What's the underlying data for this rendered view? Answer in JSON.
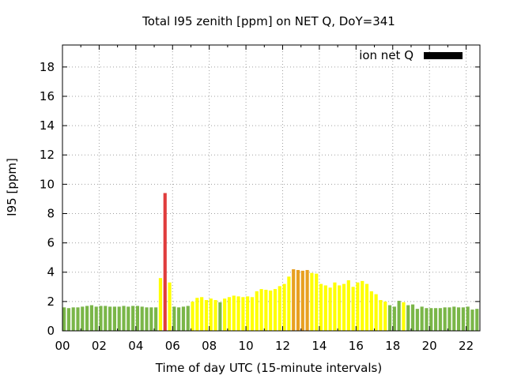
{
  "chart_data": {
    "type": "bar",
    "title": "Total I95 zenith [ppm] on NET Q, DoY=341",
    "xlabel": "Time of day UTC (15-minute intervals)",
    "ylabel": "I95 [ppm]",
    "xlim": [
      0,
      22.75
    ],
    "ylim": [
      0,
      19.5
    ],
    "x_ticks": [
      "00",
      "02",
      "04",
      "06",
      "08",
      "10",
      "12",
      "14",
      "16",
      "18",
      "20",
      "22"
    ],
    "y_ticks": [
      "0",
      "2",
      "4",
      "6",
      "8",
      "10",
      "12",
      "14",
      "16",
      "18"
    ],
    "grid": true,
    "legend": {
      "label": "ion net Q",
      "position": "top-right",
      "color": "#000000"
    },
    "colors": {
      "green": "#7ab648",
      "yellow": "#ffff00",
      "orange": "#e8a020",
      "red": "#e03c3c"
    },
    "bar_width_hours": 0.18,
    "bars": [
      {
        "x": 0.0,
        "value": 1.6,
        "color": "green"
      },
      {
        "x": 0.25,
        "value": 1.55,
        "color": "green"
      },
      {
        "x": 0.5,
        "value": 1.6,
        "color": "green"
      },
      {
        "x": 0.75,
        "value": 1.6,
        "color": "green"
      },
      {
        "x": 1.0,
        "value": 1.65,
        "color": "green"
      },
      {
        "x": 1.25,
        "value": 1.7,
        "color": "green"
      },
      {
        "x": 1.5,
        "value": 1.75,
        "color": "green"
      },
      {
        "x": 1.75,
        "value": 1.65,
        "color": "green"
      },
      {
        "x": 2.0,
        "value": 1.7,
        "color": "green"
      },
      {
        "x": 2.25,
        "value": 1.7,
        "color": "green"
      },
      {
        "x": 2.5,
        "value": 1.65,
        "color": "green"
      },
      {
        "x": 2.75,
        "value": 1.65,
        "color": "green"
      },
      {
        "x": 3.0,
        "value": 1.65,
        "color": "green"
      },
      {
        "x": 3.25,
        "value": 1.7,
        "color": "green"
      },
      {
        "x": 3.5,
        "value": 1.65,
        "color": "green"
      },
      {
        "x": 3.75,
        "value": 1.7,
        "color": "green"
      },
      {
        "x": 4.0,
        "value": 1.7,
        "color": "green"
      },
      {
        "x": 4.25,
        "value": 1.65,
        "color": "green"
      },
      {
        "x": 4.5,
        "value": 1.6,
        "color": "green"
      },
      {
        "x": 4.75,
        "value": 1.6,
        "color": "green"
      },
      {
        "x": 5.0,
        "value": 1.6,
        "color": "green"
      },
      {
        "x": 5.25,
        "value": 3.6,
        "color": "yellow"
      },
      {
        "x": 5.5,
        "value": 9.4,
        "color": "red"
      },
      {
        "x": 5.75,
        "value": 3.3,
        "color": "yellow"
      },
      {
        "x": 6.0,
        "value": 1.65,
        "color": "green"
      },
      {
        "x": 6.25,
        "value": 1.6,
        "color": "green"
      },
      {
        "x": 6.5,
        "value": 1.65,
        "color": "green"
      },
      {
        "x": 6.75,
        "value": 1.7,
        "color": "green"
      },
      {
        "x": 7.0,
        "value": 2.0,
        "color": "yellow"
      },
      {
        "x": 7.25,
        "value": 2.25,
        "color": "yellow"
      },
      {
        "x": 7.5,
        "value": 2.3,
        "color": "yellow"
      },
      {
        "x": 7.75,
        "value": 2.1,
        "color": "yellow"
      },
      {
        "x": 8.0,
        "value": 2.2,
        "color": "yellow"
      },
      {
        "x": 8.25,
        "value": 2.1,
        "color": "yellow"
      },
      {
        "x": 8.5,
        "value": 1.95,
        "color": "green"
      },
      {
        "x": 8.75,
        "value": 2.2,
        "color": "yellow"
      },
      {
        "x": 9.0,
        "value": 2.3,
        "color": "yellow"
      },
      {
        "x": 9.25,
        "value": 2.4,
        "color": "yellow"
      },
      {
        "x": 9.5,
        "value": 2.35,
        "color": "yellow"
      },
      {
        "x": 9.75,
        "value": 2.3,
        "color": "yellow"
      },
      {
        "x": 10.0,
        "value": 2.35,
        "color": "yellow"
      },
      {
        "x": 10.25,
        "value": 2.3,
        "color": "yellow"
      },
      {
        "x": 10.5,
        "value": 2.7,
        "color": "yellow"
      },
      {
        "x": 10.75,
        "value": 2.85,
        "color": "yellow"
      },
      {
        "x": 11.0,
        "value": 2.8,
        "color": "yellow"
      },
      {
        "x": 11.25,
        "value": 2.75,
        "color": "yellow"
      },
      {
        "x": 11.5,
        "value": 2.85,
        "color": "yellow"
      },
      {
        "x": 11.75,
        "value": 3.05,
        "color": "yellow"
      },
      {
        "x": 12.0,
        "value": 3.2,
        "color": "yellow"
      },
      {
        "x": 12.25,
        "value": 3.7,
        "color": "yellow"
      },
      {
        "x": 12.5,
        "value": 4.2,
        "color": "orange"
      },
      {
        "x": 12.75,
        "value": 4.15,
        "color": "orange"
      },
      {
        "x": 13.0,
        "value": 4.1,
        "color": "orange"
      },
      {
        "x": 13.25,
        "value": 4.15,
        "color": "orange"
      },
      {
        "x": 13.5,
        "value": 3.95,
        "color": "yellow"
      },
      {
        "x": 13.75,
        "value": 3.9,
        "color": "yellow"
      },
      {
        "x": 14.0,
        "value": 3.2,
        "color": "yellow"
      },
      {
        "x": 14.25,
        "value": 3.1,
        "color": "yellow"
      },
      {
        "x": 14.5,
        "value": 2.95,
        "color": "yellow"
      },
      {
        "x": 14.75,
        "value": 3.3,
        "color": "yellow"
      },
      {
        "x": 15.0,
        "value": 3.1,
        "color": "yellow"
      },
      {
        "x": 15.25,
        "value": 3.2,
        "color": "yellow"
      },
      {
        "x": 15.5,
        "value": 3.45,
        "color": "yellow"
      },
      {
        "x": 15.75,
        "value": 3.0,
        "color": "yellow"
      },
      {
        "x": 16.0,
        "value": 3.3,
        "color": "yellow"
      },
      {
        "x": 16.25,
        "value": 3.4,
        "color": "yellow"
      },
      {
        "x": 16.5,
        "value": 3.2,
        "color": "yellow"
      },
      {
        "x": 16.75,
        "value": 2.7,
        "color": "yellow"
      },
      {
        "x": 17.0,
        "value": 2.5,
        "color": "yellow"
      },
      {
        "x": 17.25,
        "value": 2.1,
        "color": "yellow"
      },
      {
        "x": 17.5,
        "value": 2.0,
        "color": "yellow"
      },
      {
        "x": 17.75,
        "value": 1.75,
        "color": "green"
      },
      {
        "x": 18.0,
        "value": 1.65,
        "color": "green"
      },
      {
        "x": 18.25,
        "value": 2.05,
        "color": "green"
      },
      {
        "x": 18.5,
        "value": 1.95,
        "color": "yellow"
      },
      {
        "x": 18.75,
        "value": 1.75,
        "color": "green"
      },
      {
        "x": 19.0,
        "value": 1.8,
        "color": "green"
      },
      {
        "x": 19.25,
        "value": 1.5,
        "color": "green"
      },
      {
        "x": 19.5,
        "value": 1.65,
        "color": "green"
      },
      {
        "x": 19.75,
        "value": 1.55,
        "color": "green"
      },
      {
        "x": 20.0,
        "value": 1.55,
        "color": "green"
      },
      {
        "x": 20.25,
        "value": 1.55,
        "color": "green"
      },
      {
        "x": 20.5,
        "value": 1.55,
        "color": "green"
      },
      {
        "x": 20.75,
        "value": 1.6,
        "color": "green"
      },
      {
        "x": 21.0,
        "value": 1.6,
        "color": "green"
      },
      {
        "x": 21.25,
        "value": 1.65,
        "color": "green"
      },
      {
        "x": 21.5,
        "value": 1.6,
        "color": "green"
      },
      {
        "x": 21.75,
        "value": 1.6,
        "color": "green"
      },
      {
        "x": 22.0,
        "value": 1.65,
        "color": "green"
      },
      {
        "x": 22.25,
        "value": 1.45,
        "color": "green"
      },
      {
        "x": 22.5,
        "value": 1.5,
        "color": "green"
      }
    ]
  }
}
